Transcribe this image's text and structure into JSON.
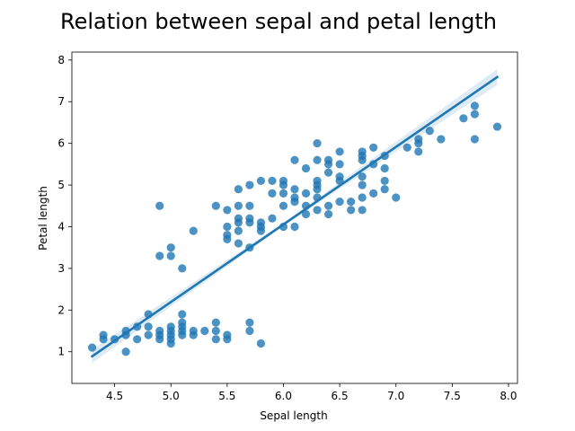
{
  "chart_data": {
    "type": "scatter",
    "title": "Relation between sepal and petal length",
    "xlabel": "Sepal length",
    "ylabel": "Petal length",
    "xlim": [
      4.12,
      8.08
    ],
    "ylim": [
      0.24,
      8.19
    ],
    "xticks": [
      "4.5",
      "5.0",
      "5.5",
      "6.0",
      "6.5",
      "7.0",
      "7.5",
      "8.0"
    ],
    "yticks": [
      "1",
      "2",
      "3",
      "4",
      "5",
      "6",
      "7",
      "8"
    ],
    "grid": false,
    "colors": {
      "points": "#1f77b4",
      "line": "#1f77b4",
      "band": "#1f77b4"
    },
    "series": [
      {
        "type": "scatter",
        "points": [
          [
            4.3,
            1.1
          ],
          [
            4.4,
            1.3
          ],
          [
            4.4,
            1.4
          ],
          [
            4.5,
            1.3
          ],
          [
            4.6,
            1.0
          ],
          [
            4.6,
            1.4
          ],
          [
            4.6,
            1.5
          ],
          [
            4.7,
            1.3
          ],
          [
            4.7,
            1.6
          ],
          [
            4.8,
            1.4
          ],
          [
            4.8,
            1.6
          ],
          [
            4.8,
            1.9
          ],
          [
            4.9,
            1.4
          ],
          [
            4.9,
            1.5
          ],
          [
            4.9,
            1.3
          ],
          [
            5.0,
            1.2
          ],
          [
            5.0,
            1.3
          ],
          [
            5.0,
            1.4
          ],
          [
            5.0,
            1.5
          ],
          [
            5.0,
            1.6
          ],
          [
            5.1,
            1.4
          ],
          [
            5.1,
            1.5
          ],
          [
            5.1,
            1.7
          ],
          [
            5.1,
            1.9
          ],
          [
            5.1,
            1.6
          ],
          [
            5.2,
            1.4
          ],
          [
            5.2,
            1.5
          ],
          [
            5.3,
            1.5
          ],
          [
            5.4,
            1.3
          ],
          [
            5.4,
            1.5
          ],
          [
            5.4,
            1.7
          ],
          [
            5.5,
            1.3
          ],
          [
            5.5,
            1.4
          ],
          [
            5.7,
            1.5
          ],
          [
            5.7,
            1.7
          ],
          [
            5.8,
            1.2
          ],
          [
            4.9,
            3.3
          ],
          [
            4.9,
            4.5
          ],
          [
            5.0,
            3.3
          ],
          [
            5.0,
            3.5
          ],
          [
            5.1,
            3.0
          ],
          [
            5.2,
            3.9
          ],
          [
            5.4,
            4.5
          ],
          [
            5.5,
            3.7
          ],
          [
            5.5,
            3.8
          ],
          [
            5.5,
            4.0
          ],
          [
            5.5,
            4.4
          ],
          [
            5.6,
            3.6
          ],
          [
            5.6,
            3.9
          ],
          [
            5.6,
            4.1
          ],
          [
            5.6,
            4.2
          ],
          [
            5.6,
            4.5
          ],
          [
            5.6,
            4.9
          ],
          [
            5.7,
            3.5
          ],
          [
            5.7,
            4.1
          ],
          [
            5.7,
            4.2
          ],
          [
            5.7,
            4.5
          ],
          [
            5.7,
            5.0
          ],
          [
            5.8,
            3.9
          ],
          [
            5.8,
            4.0
          ],
          [
            5.8,
            4.1
          ],
          [
            5.8,
            5.1
          ],
          [
            5.9,
            4.2
          ],
          [
            5.9,
            4.8
          ],
          [
            5.9,
            5.1
          ],
          [
            6.0,
            4.0
          ],
          [
            6.0,
            4.5
          ],
          [
            6.0,
            4.8
          ],
          [
            6.0,
            5.0
          ],
          [
            6.0,
            5.1
          ],
          [
            6.1,
            4.0
          ],
          [
            6.1,
            4.6
          ],
          [
            6.1,
            4.7
          ],
          [
            6.1,
            4.9
          ],
          [
            6.1,
            5.6
          ],
          [
            6.2,
            4.3
          ],
          [
            6.2,
            4.5
          ],
          [
            6.2,
            4.8
          ],
          [
            6.2,
            5.4
          ],
          [
            6.3,
            4.4
          ],
          [
            6.3,
            4.7
          ],
          [
            6.3,
            4.9
          ],
          [
            6.3,
            5.0
          ],
          [
            6.3,
            5.1
          ],
          [
            6.3,
            5.6
          ],
          [
            6.3,
            6.0
          ],
          [
            6.4,
            4.3
          ],
          [
            6.4,
            4.5
          ],
          [
            6.4,
            5.3
          ],
          [
            6.4,
            5.5
          ],
          [
            6.4,
            5.6
          ],
          [
            6.5,
            4.6
          ],
          [
            6.5,
            5.1
          ],
          [
            6.5,
            5.2
          ],
          [
            6.5,
            5.5
          ],
          [
            6.5,
            5.8
          ],
          [
            6.6,
            4.4
          ],
          [
            6.6,
            4.6
          ],
          [
            6.7,
            4.4
          ],
          [
            6.7,
            4.7
          ],
          [
            6.7,
            5.0
          ],
          [
            6.7,
            5.2
          ],
          [
            6.7,
            5.6
          ],
          [
            6.7,
            5.7
          ],
          [
            6.7,
            5.8
          ],
          [
            6.8,
            4.8
          ],
          [
            6.8,
            5.5
          ],
          [
            6.8,
            5.9
          ],
          [
            6.9,
            4.9
          ],
          [
            6.9,
            5.1
          ],
          [
            6.9,
            5.4
          ],
          [
            6.9,
            5.7
          ],
          [
            7.0,
            4.7
          ],
          [
            7.1,
            5.9
          ],
          [
            7.2,
            5.8
          ],
          [
            7.2,
            6.0
          ],
          [
            7.2,
            6.1
          ],
          [
            7.3,
            6.3
          ],
          [
            7.4,
            6.1
          ],
          [
            7.6,
            6.6
          ],
          [
            7.7,
            6.1
          ],
          [
            7.7,
            6.7
          ],
          [
            7.7,
            6.9
          ],
          [
            7.9,
            6.4
          ]
        ]
      },
      {
        "type": "regression",
        "line": [
          [
            4.3,
            0.89
          ],
          [
            7.9,
            7.59
          ]
        ],
        "ci_band": {
          "lower": [
            [
              4.3,
              0.73
            ],
            [
              6.0,
              4.02
            ],
            [
              7.9,
              7.4
            ]
          ],
          "upper": [
            [
              4.3,
              1.05
            ],
            [
              6.0,
              4.1
            ],
            [
              7.9,
              7.78
            ]
          ]
        }
      }
    ]
  }
}
